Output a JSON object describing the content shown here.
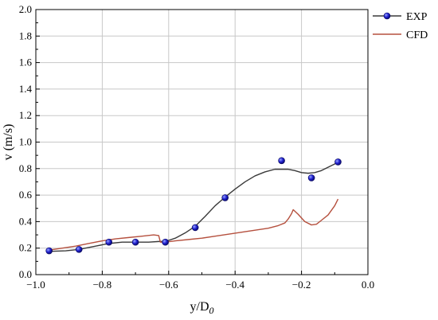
{
  "chart_data": {
    "type": "line",
    "xlabel": "y/D",
    "xlabel_sub": "0",
    "ylabel": "v (m/s)",
    "xlim": [
      -1.0,
      0.0
    ],
    "ylim": [
      0.0,
      2.0
    ],
    "xticks": [
      "−1.0",
      "−0.8",
      "−0.6",
      "−0.4",
      "−0.2",
      "0.0"
    ],
    "xtick_values": [
      -1.0,
      -0.8,
      -0.6,
      -0.4,
      -0.2,
      0.0
    ],
    "yticks": [
      "0.0",
      "0.2",
      "0.4",
      "0.6",
      "0.8",
      "1.0",
      "1.2",
      "1.4",
      "1.6",
      "1.8",
      "2.0"
    ],
    "ytick_values": [
      0.0,
      0.2,
      0.4,
      0.6,
      0.8,
      1.0,
      1.2,
      1.4,
      1.6,
      1.8,
      2.0
    ],
    "grid": true,
    "legend_position": "top-right-outside",
    "series": [
      {
        "name": "EXP",
        "style": "points-with-smooth-line",
        "marker_color": "#2020d0",
        "line_color": "#3a3a3a",
        "x": [
          -0.96,
          -0.87,
          -0.78,
          -0.7,
          -0.61,
          -0.52,
          -0.43,
          -0.26,
          -0.17,
          -0.09
        ],
        "y": [
          0.18,
          0.19,
          0.245,
          0.245,
          0.245,
          0.355,
          0.58,
          0.86,
          0.73,
          0.85
        ],
        "curve_x": [
          -0.96,
          -0.91,
          -0.87,
          -0.82,
          -0.78,
          -0.74,
          -0.7,
          -0.66,
          -0.63,
          -0.61,
          -0.58,
          -0.55,
          -0.52,
          -0.49,
          -0.46,
          -0.43,
          -0.4,
          -0.37,
          -0.34,
          -0.31,
          -0.28,
          -0.26,
          -0.24,
          -0.22,
          -0.2,
          -0.18,
          -0.16,
          -0.14,
          -0.12,
          -0.1,
          -0.09
        ],
        "curve_y": [
          0.175,
          0.18,
          0.19,
          0.215,
          0.235,
          0.245,
          0.245,
          0.245,
          0.25,
          0.25,
          0.275,
          0.315,
          0.365,
          0.44,
          0.52,
          0.585,
          0.645,
          0.7,
          0.745,
          0.775,
          0.795,
          0.795,
          0.795,
          0.785,
          0.77,
          0.765,
          0.77,
          0.785,
          0.81,
          0.835,
          0.85
        ]
      },
      {
        "name": "CFD",
        "style": "line",
        "line_color": "#b5503e",
        "x": [
          -0.96,
          -0.92,
          -0.88,
          -0.84,
          -0.8,
          -0.76,
          -0.72,
          -0.68,
          -0.645,
          -0.63,
          -0.625,
          -0.61,
          -0.58,
          -0.54,
          -0.5,
          -0.46,
          -0.42,
          -0.38,
          -0.34,
          -0.3,
          -0.27,
          -0.25,
          -0.24,
          -0.23,
          -0.225,
          -0.21,
          -0.19,
          -0.17,
          -0.155,
          -0.14,
          -0.12,
          -0.1,
          -0.09
        ],
        "y": [
          0.185,
          0.2,
          0.215,
          0.235,
          0.255,
          0.27,
          0.28,
          0.29,
          0.3,
          0.295,
          0.245,
          0.245,
          0.255,
          0.265,
          0.275,
          0.29,
          0.305,
          0.32,
          0.335,
          0.35,
          0.37,
          0.39,
          0.42,
          0.46,
          0.49,
          0.455,
          0.4,
          0.375,
          0.38,
          0.41,
          0.45,
          0.52,
          0.57
        ]
      }
    ]
  }
}
